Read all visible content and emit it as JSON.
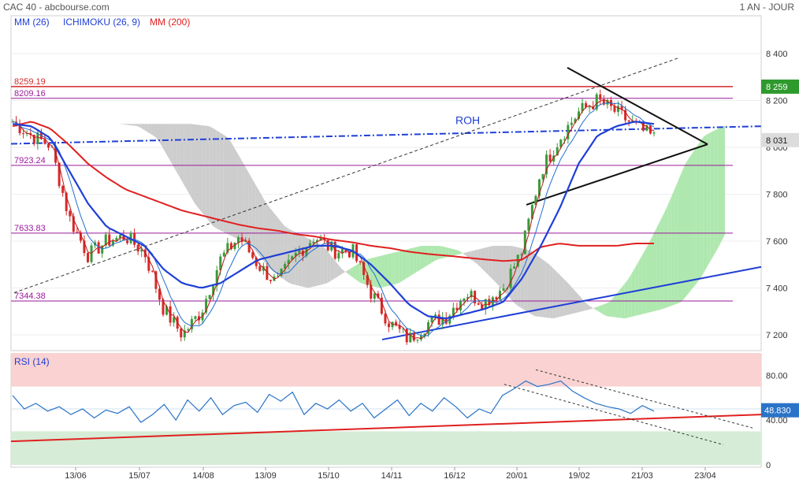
{
  "header": {
    "title": "CAC 40 - abcbourse.com",
    "period": "1 AN - JOUR"
  },
  "legend": [
    {
      "label": "MM (26)",
      "color": "#1f3fd6"
    },
    {
      "label": "ICHIMOKU (26, 9)",
      "color": "#1f3fd6"
    },
    {
      "label": "MM (200)",
      "color": "#e02020"
    }
  ],
  "colors": {
    "up": "#3a9a3a",
    "down": "#d62828",
    "mm26": "#1f3fd6",
    "mm200": "#e02020",
    "kijun": "#1f6fd0",
    "tenkan": "#c01818",
    "cloud_bull": "#a6e6a6",
    "cloud_bear": "#c8c8c8",
    "level": "#9a1a9a",
    "rsi_line": "#2a73c8",
    "rsi_over": "#fad2d2",
    "rsi_under": "#d6ecd6"
  },
  "chart_data": [
    {
      "type": "candlestick",
      "title": "CAC 40",
      "ylim": [
        7150,
        8500
      ],
      "yticks": [
        "8 400",
        "8 200",
        "8 000",
        "7 800",
        "7 600",
        "7 400",
        "7 200"
      ],
      "ytick_values": [
        8400,
        8200,
        8000,
        7800,
        7600,
        7400,
        7200
      ],
      "xticks": [
        "13/06",
        "15/07",
        "14/08",
        "13/09",
        "15/10",
        "14/11",
        "16/12",
        "20/01",
        "19/02",
        "21/03",
        "23/04"
      ],
      "levels": [
        {
          "label": "8259.19",
          "value": 8259.19,
          "color": "#d62828"
        },
        {
          "label": "8209.16",
          "value": 8209.16,
          "color": "#9a1a9a"
        },
        {
          "label": "7923.24",
          "value": 7923.24,
          "color": "#9a1a9a"
        },
        {
          "label": "7633.83",
          "value": 7633.83,
          "color": "#9a1a9a"
        },
        {
          "label": "7344.38",
          "value": 7344.38,
          "color": "#9a1a9a"
        }
      ],
      "price_tags": [
        {
          "label": "8 259",
          "value": 8259,
          "color": "#2e9a2e"
        },
        {
          "label": "8 031",
          "value": 8031,
          "color": "#dcdcdc"
        }
      ],
      "annotations": [
        {
          "label": "ROH"
        }
      ],
      "close_anchors": [
        8110,
        8050,
        8010,
        7700,
        7540,
        7600,
        7620,
        7550,
        7310,
        7200,
        7300,
        7520,
        7620,
        7500,
        7420,
        7540,
        7620,
        7560,
        7560,
        7380,
        7250,
        7180,
        7250,
        7280,
        7380,
        7340,
        7400,
        7560,
        7900,
        8040,
        8150,
        8200,
        8150,
        8090,
        8040
      ],
      "mm26_anchors": [
        8100,
        8090,
        8040,
        7900,
        7760,
        7660,
        7620,
        7580,
        7480,
        7420,
        7400,
        7420,
        7470,
        7520,
        7540,
        7560,
        7580,
        7580,
        7560,
        7500,
        7420,
        7330,
        7280,
        7270,
        7290,
        7310,
        7340,
        7440,
        7580,
        7740,
        7930,
        8050,
        8090,
        8110,
        8100
      ],
      "mm200_anchors": [
        8090,
        8110,
        8080,
        8010,
        7930,
        7870,
        7820,
        7790,
        7760,
        7730,
        7710,
        7690,
        7670,
        7655,
        7645,
        7630,
        7620,
        7605,
        7595,
        7580,
        7570,
        7555,
        7545,
        7538,
        7530,
        7522,
        7515,
        7520,
        7575,
        7590,
        7580,
        7580,
        7580,
        7590,
        7590
      ]
    },
    {
      "type": "line",
      "title": "RSI (14)",
      "ylim": [
        0,
        100
      ],
      "yticks": [
        "80.00",
        "40.00",
        "0"
      ],
      "ytick_values": [
        80,
        40,
        0
      ],
      "zones": [
        {
          "from": 70,
          "to": 100
        },
        {
          "from": 0,
          "to": 30
        }
      ],
      "last_value_label": "48.830",
      "last_value": 48.83,
      "values": [
        62,
        50,
        55,
        48,
        52,
        45,
        50,
        42,
        49,
        46,
        52,
        38,
        45,
        54,
        40,
        58,
        48,
        60,
        45,
        53,
        56,
        47,
        63,
        57,
        65,
        45,
        55,
        50,
        58,
        48,
        55,
        42,
        50,
        58,
        44,
        55,
        48,
        60,
        52,
        42,
        50,
        46,
        62,
        68,
        75,
        70,
        72,
        75,
        66,
        60,
        55,
        52,
        50,
        46,
        53,
        48
      ]
    }
  ]
}
